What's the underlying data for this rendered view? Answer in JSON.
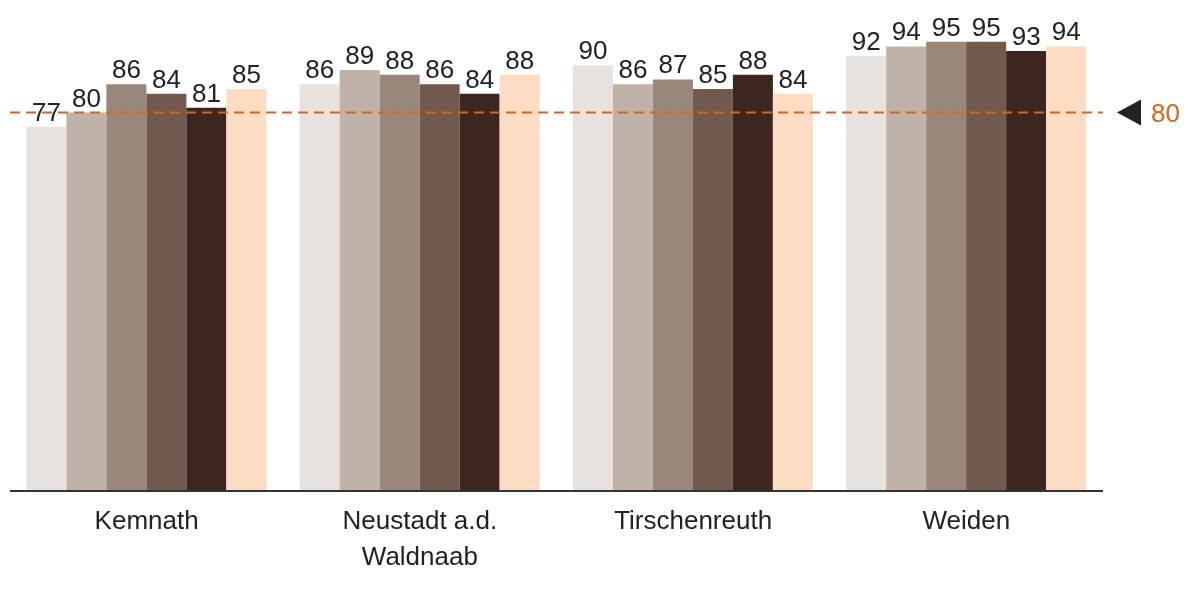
{
  "chart_data": {
    "type": "bar",
    "categories": [
      "Kemnath",
      "Neustadt a.d. Waldnaab",
      "Tirschenreuth",
      "Weiden"
    ],
    "series": [
      {
        "color": "#e8e2df",
        "values": [
          77,
          86,
          90,
          92
        ]
      },
      {
        "color": "#c0b2a8",
        "values": [
          80,
          89,
          86,
          94
        ]
      },
      {
        "color": "#9a877b",
        "values": [
          86,
          88,
          87,
          95
        ]
      },
      {
        "color": "#735a4e",
        "values": [
          84,
          86,
          85,
          95
        ]
      },
      {
        "color": "#3d2620",
        "values": [
          81,
          84,
          88,
          93
        ]
      },
      {
        "color": "#fddcc4",
        "values": [
          85,
          88,
          84,
          94
        ]
      }
    ],
    "data_labels": true,
    "grid": false,
    "legend": false,
    "ref_lines": [
      {
        "axis": "y",
        "value": 80,
        "label": "80",
        "color": "#d9651b",
        "line_style": "dashed"
      }
    ]
  }
}
